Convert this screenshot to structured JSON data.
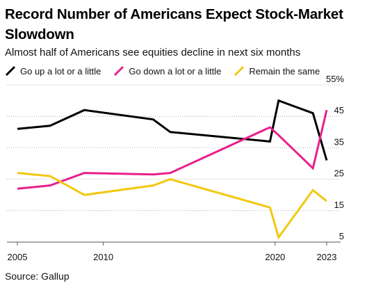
{
  "title": "Record Number of Americans Expect Stock-Market Slowdown",
  "subtitle": "Almost half of Americans see equities decline in next six months",
  "source": "Source: Gallup",
  "chart_data": {
    "type": "line",
    "title": "Record Number of Americans Expect Stock-Market Slowdown",
    "subtitle": "Almost half of Americans see equities decline in next six months",
    "xlabel": "",
    "ylabel": "",
    "xlim": [
      2005,
      2023
    ],
    "ylim": [
      5,
      55
    ],
    "y_ticks": [
      {
        "value": 55,
        "label": "55%"
      },
      {
        "value": 45,
        "label": "45"
      },
      {
        "value": 35,
        "label": "35"
      },
      {
        "value": 25,
        "label": "25"
      },
      {
        "value": 15,
        "label": "15"
      },
      {
        "value": 5,
        "label": "5"
      }
    ],
    "x_ticks": [
      {
        "value": 2005,
        "label": "2005"
      },
      {
        "value": 2010,
        "label": "2010"
      },
      {
        "value": 2020,
        "label": "2020"
      },
      {
        "value": 2023,
        "label": "2023"
      }
    ],
    "grid": true,
    "legend_position": "top",
    "series": [
      {
        "name": "Go up a lot or a little",
        "color": "#000000",
        "points": [
          [
            2005,
            41
          ],
          [
            2006.9,
            42
          ],
          [
            2008.9,
            47
          ],
          [
            2012.9,
            44
          ],
          [
            2013.9,
            40
          ],
          [
            2019.7,
            37
          ],
          [
            2020.2,
            50
          ],
          [
            2022.2,
            46
          ],
          [
            2023,
            31
          ]
        ]
      },
      {
        "name": "Go down a lot or a little",
        "color": "#e91e8c",
        "points": [
          [
            2005,
            22
          ],
          [
            2006.9,
            23
          ],
          [
            2008.9,
            27
          ],
          [
            2012.9,
            26.5
          ],
          [
            2013.9,
            27
          ],
          [
            2019.7,
            41.5
          ],
          [
            2020.2,
            39
          ],
          [
            2022.2,
            28.5
          ],
          [
            2023,
            47
          ]
        ]
      },
      {
        "name": "Remain the same",
        "color": "#f2c80f",
        "points": [
          [
            2005,
            27
          ],
          [
            2006.9,
            26
          ],
          [
            2008.9,
            20
          ],
          [
            2012.9,
            23
          ],
          [
            2013.9,
            25
          ],
          [
            2019.7,
            16
          ],
          [
            2020.2,
            6.5
          ],
          [
            2022.2,
            21.5
          ],
          [
            2023,
            18
          ]
        ]
      }
    ]
  }
}
